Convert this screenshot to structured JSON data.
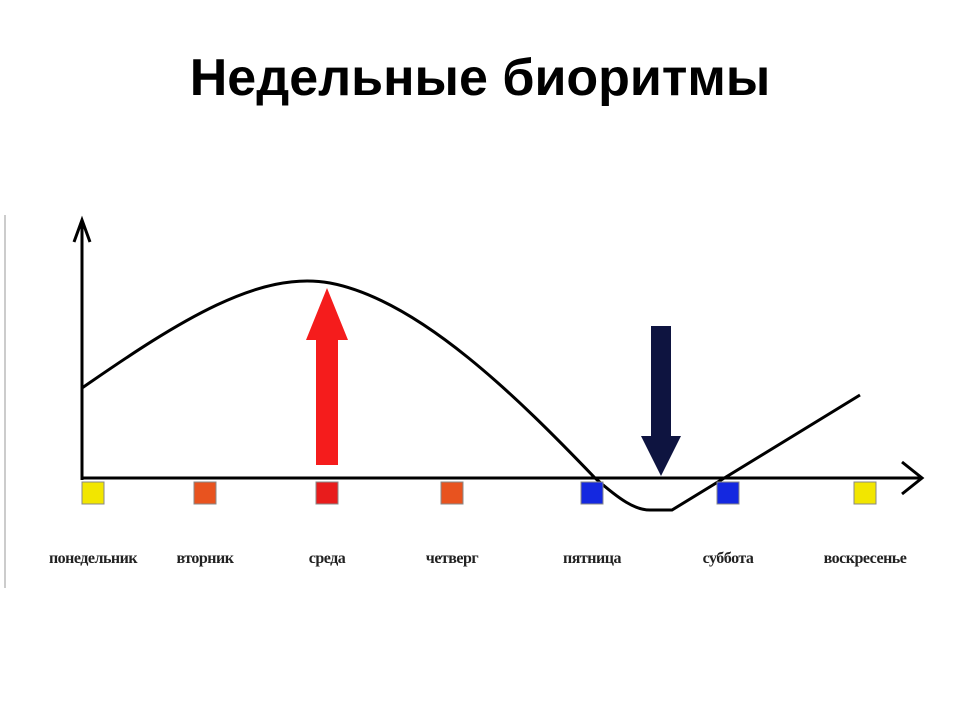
{
  "title": "Недельные биоритмы",
  "days": [
    {
      "label": "понедельник",
      "color": "#f2e600"
    },
    {
      "label": "вторник",
      "color": "#e8531f"
    },
    {
      "label": "среда",
      "color": "#e81c1c"
    },
    {
      "label": "четверг",
      "color": "#e8531f"
    },
    {
      "label": "пятница",
      "color": "#1428e0"
    },
    {
      "label": "суббота",
      "color": "#1428e0"
    },
    {
      "label": "воскресенье",
      "color": "#f2e600"
    }
  ]
}
